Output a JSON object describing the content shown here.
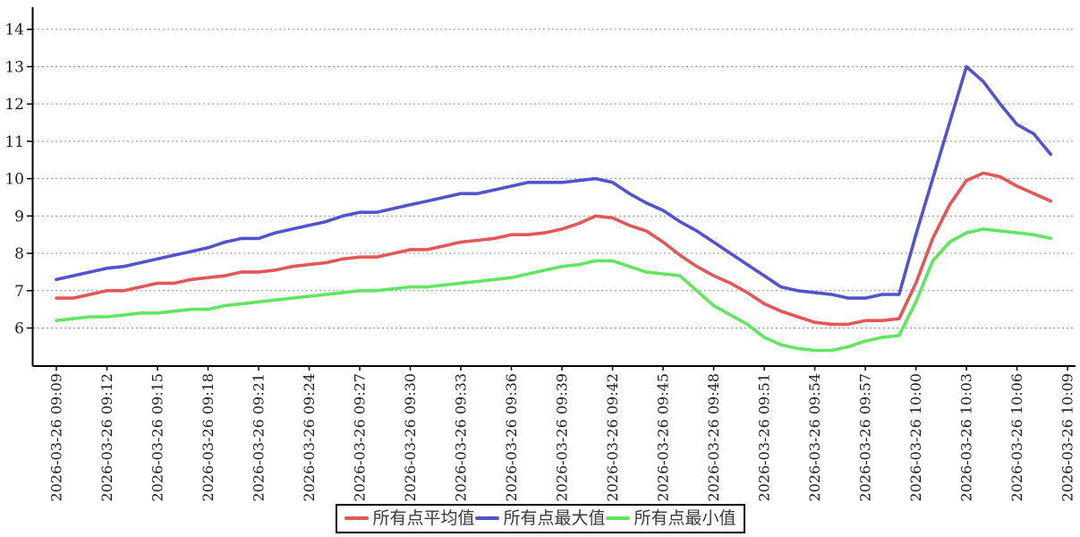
{
  "chart_data": {
    "type": "line",
    "title": "",
    "xlabel": "",
    "ylabel": "",
    "x_start": "2026-03-26 09:09",
    "x_end_data": "2026-03-26 10:08",
    "x_interval_minutes": 1,
    "x_tick_labels": [
      "2026-03-26 09:09",
      "2026-03-26 09:12",
      "2026-03-26 09:15",
      "2026-03-26 09:18",
      "2026-03-26 09:21",
      "2026-03-26 09:24",
      "2026-03-26 09:27",
      "2026-03-26 09:30",
      "2026-03-26 09:33",
      "2026-03-26 09:36",
      "2026-03-26 09:39",
      "2026-03-26 09:42",
      "2026-03-26 09:45",
      "2026-03-26 09:48",
      "2026-03-26 09:51",
      "2026-03-26 09:54",
      "2026-03-26 09:57",
      "2026-03-26 10:00",
      "2026-03-26 10:03",
      "2026-03-26 10:06",
      "2026-03-26 10:09"
    ],
    "y_ticks": [
      6,
      7,
      8,
      9,
      10,
      11,
      12,
      13,
      14
    ],
    "ylim": [
      4.95,
      14.6
    ],
    "grid": "dotted-horizontal",
    "legend_position": "bottom-center",
    "series": [
      {
        "name": "所有点平均值",
        "color": "#e25757",
        "values": [
          6.8,
          6.8,
          6.9,
          7.0,
          7.0,
          7.1,
          7.2,
          7.2,
          7.3,
          7.35,
          7.4,
          7.5,
          7.5,
          7.55,
          7.65,
          7.7,
          7.75,
          7.85,
          7.9,
          7.9,
          8.0,
          8.1,
          8.1,
          8.2,
          8.3,
          8.35,
          8.4,
          8.5,
          8.5,
          8.55,
          8.65,
          8.8,
          9.0,
          8.95,
          8.75,
          8.6,
          8.3,
          7.95,
          7.65,
          7.4,
          7.2,
          6.95,
          6.65,
          6.45,
          6.3,
          6.15,
          6.1,
          6.1,
          6.2,
          6.2,
          6.25,
          7.2,
          8.4,
          9.3,
          9.95,
          10.15,
          10.05,
          9.8,
          9.6,
          9.4
        ]
      },
      {
        "name": "所有点最大值",
        "color": "#5353ce",
        "values": [
          7.3,
          7.4,
          7.5,
          7.6,
          7.65,
          7.75,
          7.85,
          7.95,
          8.05,
          8.15,
          8.3,
          8.4,
          8.4,
          8.55,
          8.65,
          8.75,
          8.85,
          9.0,
          9.1,
          9.1,
          9.2,
          9.3,
          9.4,
          9.5,
          9.6,
          9.6,
          9.7,
          9.8,
          9.9,
          9.9,
          9.9,
          9.95,
          10.0,
          9.9,
          9.6,
          9.35,
          9.15,
          8.85,
          8.6,
          8.3,
          8.0,
          7.7,
          7.4,
          7.1,
          7.0,
          6.95,
          6.9,
          6.8,
          6.8,
          6.9,
          6.9,
          8.5,
          10.0,
          11.5,
          13.0,
          12.6,
          12.0,
          11.45,
          11.2,
          10.65
        ]
      },
      {
        "name": "所有点最小值",
        "color": "#62e562",
        "values": [
          6.2,
          6.25,
          6.3,
          6.3,
          6.35,
          6.4,
          6.4,
          6.45,
          6.5,
          6.5,
          6.6,
          6.65,
          6.7,
          6.75,
          6.8,
          6.85,
          6.9,
          6.95,
          7.0,
          7.0,
          7.05,
          7.1,
          7.1,
          7.15,
          7.2,
          7.25,
          7.3,
          7.35,
          7.45,
          7.55,
          7.65,
          7.7,
          7.8,
          7.8,
          7.65,
          7.5,
          7.45,
          7.4,
          7.0,
          6.6,
          6.35,
          6.1,
          5.75,
          5.55,
          5.45,
          5.4,
          5.4,
          5.5,
          5.65,
          5.75,
          5.8,
          6.7,
          7.8,
          8.3,
          8.55,
          8.65,
          8.6,
          8.55,
          8.5,
          8.4
        ]
      }
    ],
    "colors": {
      "axis": "#000000",
      "grid": "#909090",
      "tick_label": "#1c1c1c",
      "legend_text": "#3a3a3a",
      "background": "#ffffff"
    }
  },
  "legend": {
    "items": [
      {
        "label": "所有点平均值"
      },
      {
        "label": "所有点最大值"
      },
      {
        "label": "所有点最小值"
      }
    ]
  }
}
